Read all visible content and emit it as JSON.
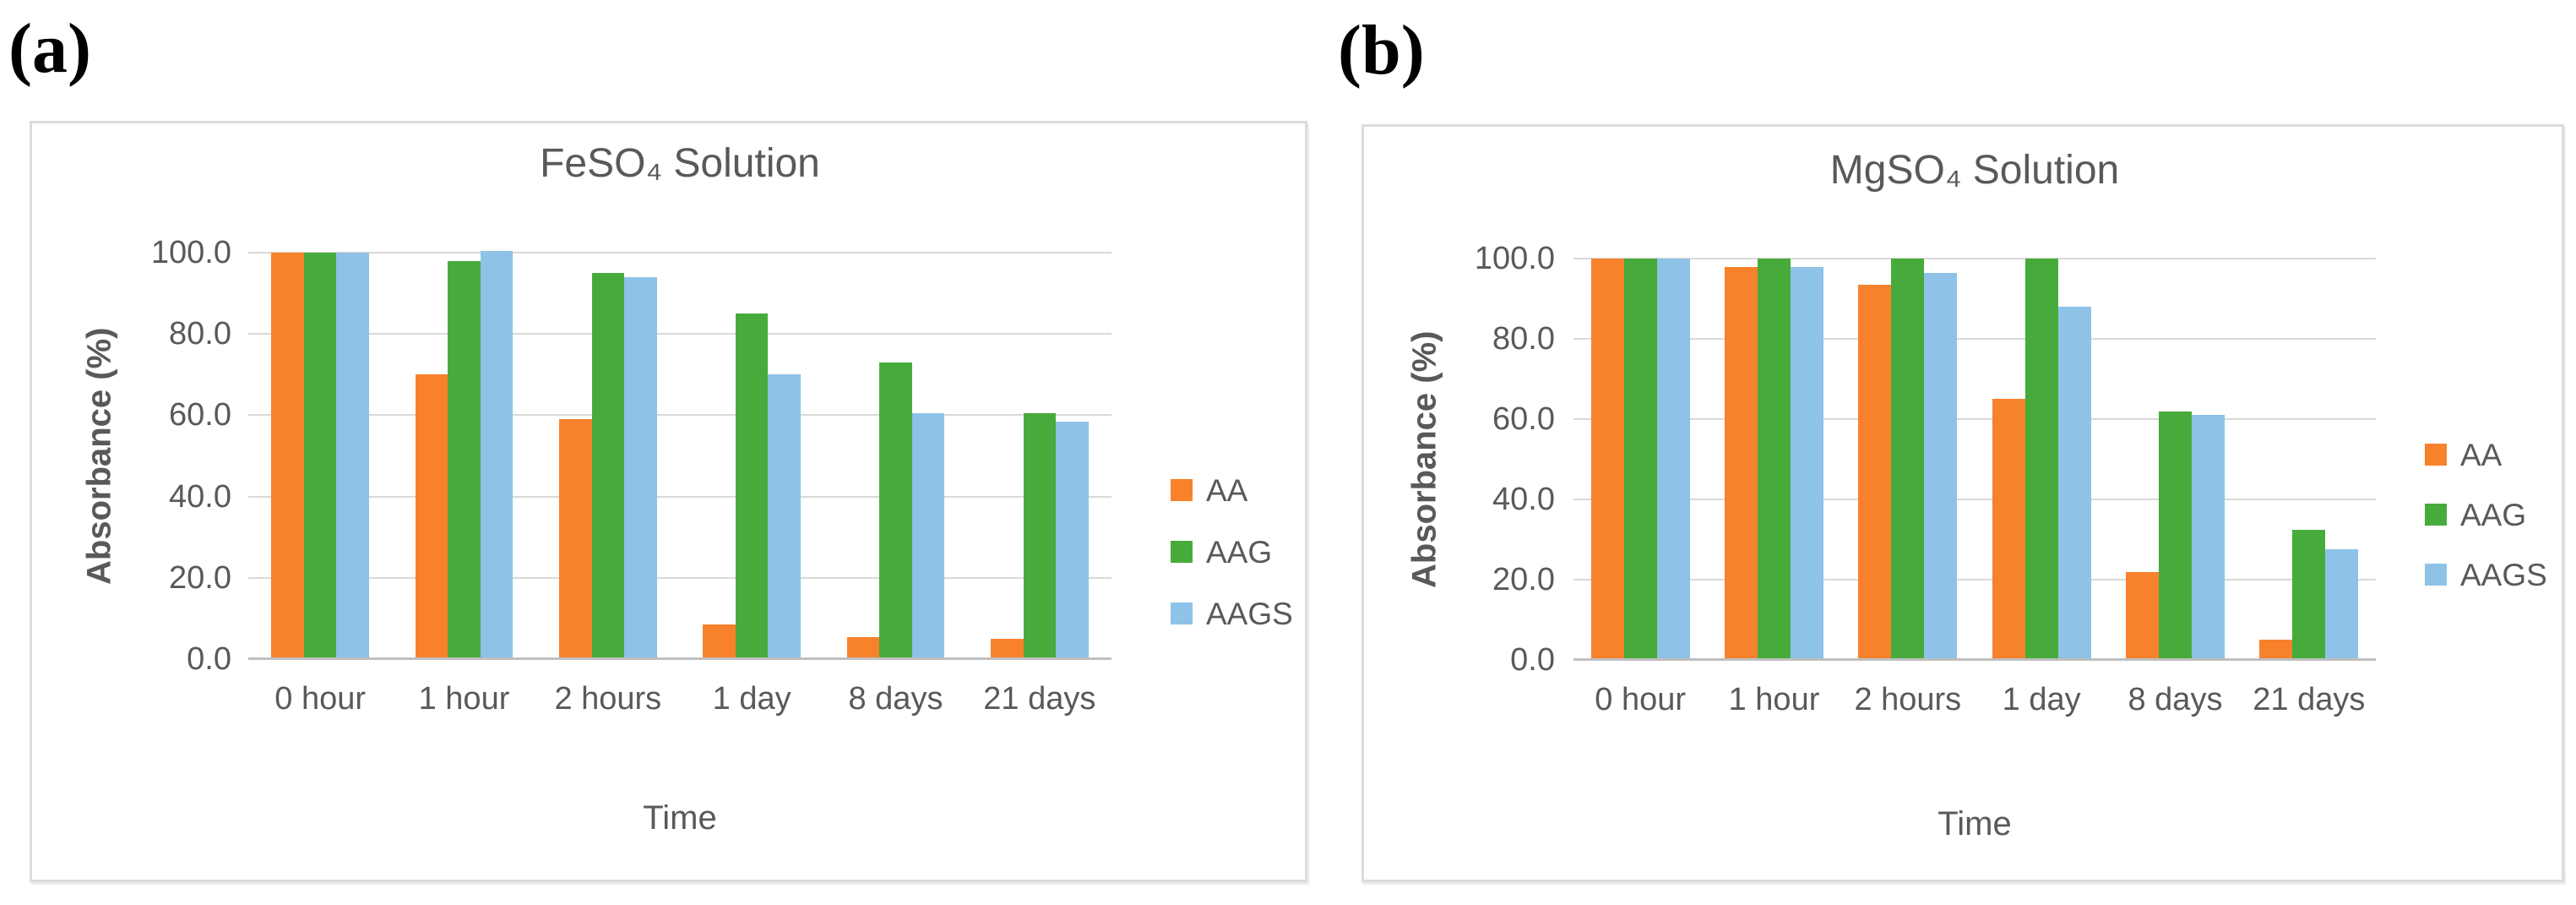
{
  "panel_labels": {
    "a": "(a)",
    "b": "(b)"
  },
  "colors": {
    "aa": "#F8812B",
    "aag": "#47AB3B",
    "aags": "#8EC2E7",
    "gridline": "#D9D9D9",
    "axis_line": "#BFBFBF",
    "text": "#595959",
    "chart_border": "#DCDCDC"
  },
  "chart_data": [
    {
      "type": "bar",
      "title": "FeSO₄ Solution",
      "xlabel": "Time",
      "ylabel": "Absorbance (%)",
      "ylim": [
        0,
        100
      ],
      "ytick_step": 20,
      "grid": true,
      "legend_position": "right",
      "ytick_labels": [
        "100.0",
        "80.0",
        "60.0",
        "40.0",
        "20.0",
        "0.0"
      ],
      "categories": [
        "0 hour",
        "1 hour",
        "2 hours",
        "1 day",
        "8 days",
        "21 days"
      ],
      "series": [
        {
          "name": "AA",
          "color_key": "aa",
          "values": [
            100,
            70,
            59,
            8.5,
            5.5,
            5
          ]
        },
        {
          "name": "AAG",
          "color_key": "aag",
          "values": [
            100,
            98,
            95,
            85,
            73,
            60.5
          ]
        },
        {
          "name": "AAGS",
          "color_key": "aags",
          "values": [
            100,
            100.5,
            94,
            70,
            60.5,
            58.5
          ]
        }
      ]
    },
    {
      "type": "bar",
      "title": "MgSO₄ Solution",
      "xlabel": "Time",
      "ylabel": "Absorbance (%)",
      "ylim": [
        0,
        100
      ],
      "ytick_step": 20,
      "grid": true,
      "legend_position": "right",
      "ytick_labels": [
        "100.0",
        "80.0",
        "60.0",
        "40.0",
        "20.0",
        "0.0"
      ],
      "categories": [
        "0 hour",
        "1 hour",
        "2 hours",
        "1 day",
        "8 days",
        "21 days"
      ],
      "series": [
        {
          "name": "AA",
          "color_key": "aa",
          "values": [
            100,
            98,
            93.5,
            65,
            22,
            5
          ]
        },
        {
          "name": "AAG",
          "color_key": "aag",
          "values": [
            100,
            100,
            100,
            100,
            62,
            32.5
          ]
        },
        {
          "name": "AAGS",
          "color_key": "aags",
          "values": [
            100,
            98,
            96.5,
            88,
            61,
            27.5
          ]
        }
      ]
    }
  ]
}
